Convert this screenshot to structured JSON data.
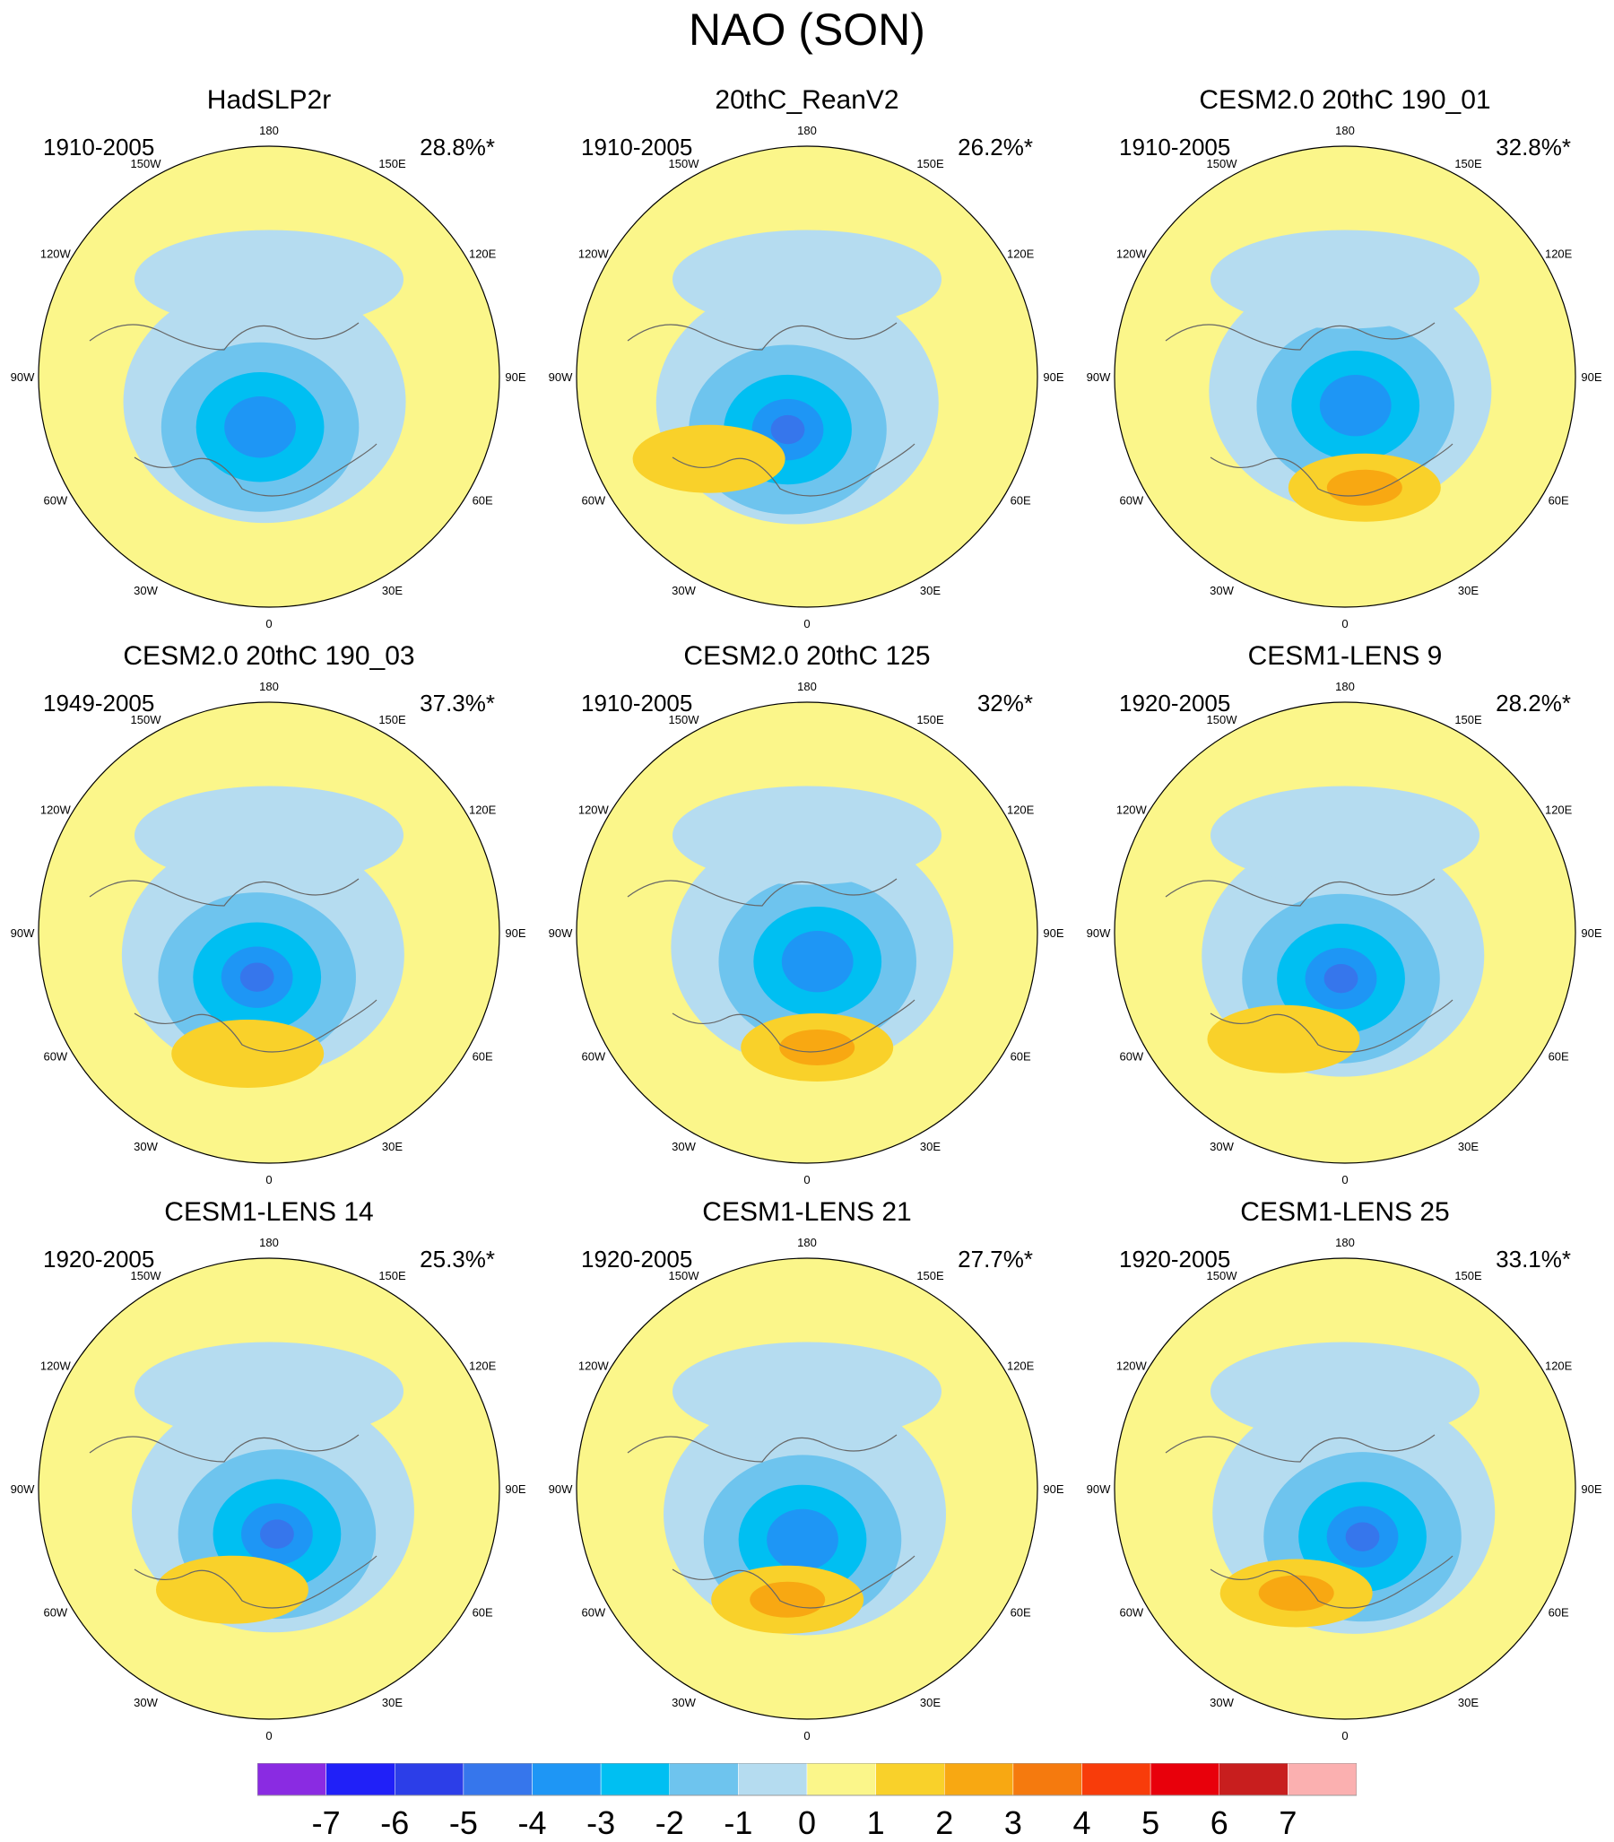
{
  "title": "NAO (SON)",
  "chart_data": [
    {
      "type": "heatmap",
      "title": "HadSLP2r",
      "period": "1910-2005",
      "variance": "28.8%*",
      "colors": {
        "c1": "#b5dcf0",
        "c2": "#6ec4ee",
        "c3": "#00c3f2",
        "c4": "#1e9bf5",
        "pos1": "#f9d12a",
        "pos2": "#f8a812"
      },
      "lows": [
        {
          "lon": -10,
          "lat": 70,
          "level": 3
        }
      ],
      "highs": []
    },
    {
      "type": "heatmap",
      "title": "20thC_ReanV2",
      "period": "1910-2005",
      "variance": "26.2%*",
      "lows": [
        {
          "lon": -20,
          "lat": 68,
          "level": 4
        }
      ],
      "highs": [
        {
          "lon": -50,
          "lat": 40,
          "level": 1
        }
      ]
    },
    {
      "type": "heatmap",
      "title": "CESM2.0 20thC 190_01",
      "period": "1910-2005",
      "variance": "32.8%*",
      "lows": [
        {
          "lon": 20,
          "lat": 78,
          "level": 3
        }
      ],
      "highs": [
        {
          "lon": 10,
          "lat": 46,
          "level": 2
        }
      ]
    },
    {
      "type": "heatmap",
      "title": "CESM2.0 20thC 190_03",
      "period": "1949-2005",
      "variance": "37.3%*",
      "lows": [
        {
          "lon": -15,
          "lat": 72,
          "level": 4
        }
      ],
      "highs": [
        {
          "lon": -10,
          "lat": 42,
          "level": 1
        }
      ]
    },
    {
      "type": "heatmap",
      "title": "CESM2.0 20thC 125",
      "period": "1910-2005",
      "variance": "32%*",
      "lows": [
        {
          "lon": 20,
          "lat": 78,
          "level": 3
        }
      ],
      "highs": [
        {
          "lon": 5,
          "lat": 45,
          "level": 2
        }
      ]
    },
    {
      "type": "heatmap",
      "title": "CESM1-LENS 9",
      "period": "1920-2005",
      "variance": "28.2%*",
      "lows": [
        {
          "lon": -5,
          "lat": 72,
          "level": 4
        }
      ],
      "highs": [
        {
          "lon": -30,
          "lat": 42,
          "level": 1
        }
      ]
    },
    {
      "type": "heatmap",
      "title": "CESM1-LENS 14",
      "period": "1920-2005",
      "variance": "25.3%*",
      "lows": [
        {
          "lon": 10,
          "lat": 72,
          "level": 4
        }
      ],
      "highs": [
        {
          "lon": -20,
          "lat": 48,
          "level": 1
        }
      ]
    },
    {
      "type": "heatmap",
      "title": "CESM1-LENS 21",
      "period": "1920-2005",
      "variance": "27.7%*",
      "lows": [
        {
          "lon": -5,
          "lat": 70,
          "level": 3
        }
      ],
      "highs": [
        {
          "lon": -10,
          "lat": 46,
          "level": 2
        }
      ]
    },
    {
      "type": "heatmap",
      "title": "CESM1-LENS 25",
      "period": "1920-2005",
      "variance": "33.1%*",
      "lows": [
        {
          "lon": 20,
          "lat": 70,
          "level": 4
        }
      ],
      "highs": [
        {
          "lon": -25,
          "lat": 45,
          "level": 2
        }
      ]
    }
  ],
  "lon_labels": [
    "180",
    "150E",
    "120E",
    "90E",
    "60E",
    "30E",
    "0",
    "30W",
    "60W",
    "90W",
    "120W",
    "150W"
  ],
  "colorbar": {
    "labels": [
      "-7",
      "-6",
      "-5",
      "-4",
      "-3",
      "-2",
      "-1",
      "0",
      "1",
      "2",
      "3",
      "4",
      "5",
      "6",
      "7"
    ],
    "colors": [
      "#8a2be2",
      "#2020f8",
      "#2c3ee8",
      "#3676ec",
      "#1e96f5",
      "#00bff2",
      "#6ec4ee",
      "#b5dcf0",
      "#fbf68a",
      "#f9d12a",
      "#f8a812",
      "#f57a0e",
      "#f83c0a",
      "#e8000b",
      "#c81e1e",
      "#fbb0b0"
    ]
  }
}
